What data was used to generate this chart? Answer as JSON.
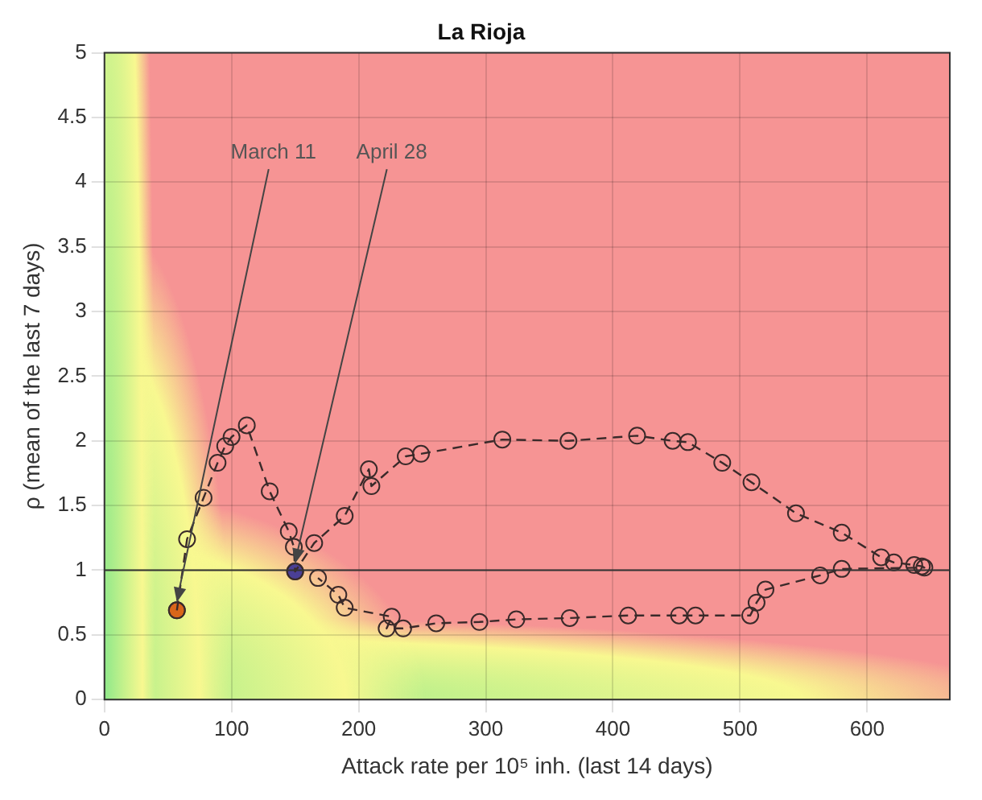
{
  "chart_data": {
    "type": "line",
    "title": "La Rioja",
    "xlabel": "Attack rate per 10⁵ inh. (last 14 days)",
    "ylabel": "ρ (mean of the last 7 days)",
    "xlim": [
      0,
      665
    ],
    "xticks": [
      0,
      100,
      200,
      300,
      400,
      500,
      600
    ],
    "ylim": [
      0,
      5
    ],
    "yticks": [
      0,
      0.5,
      1,
      1.5,
      2,
      2.5,
      3,
      3.5,
      4,
      4.5,
      5
    ],
    "grid": true,
    "marker": "circle",
    "line_style": "dashed",
    "series": [
      {
        "type": "line",
        "color": "#3a2a2a",
        "x": [
          57,
          65,
          78,
          89,
          95,
          100,
          112,
          130,
          145,
          149,
          150,
          165,
          189,
          208,
          210,
          237,
          249,
          313,
          365,
          419,
          447,
          459,
          486,
          509,
          544,
          580,
          611,
          621,
          637,
          643,
          645,
          580,
          563,
          520,
          513,
          508,
          465,
          452,
          412,
          366,
          324,
          295,
          261,
          235,
          222,
          226,
          189,
          184,
          168
        ],
        "values": [
          0.69,
          1.24,
          1.56,
          1.83,
          1.96,
          2.03,
          2.12,
          1.61,
          1.3,
          1.18,
          0.99,
          1.21,
          1.42,
          1.78,
          1.65,
          1.88,
          1.9,
          2.01,
          2.0,
          2.04,
          2.0,
          1.99,
          1.83,
          1.68,
          1.44,
          1.29,
          1.1,
          1.06,
          1.04,
          1.03,
          1.02,
          1.01,
          0.96,
          0.85,
          0.75,
          0.65,
          0.65,
          0.65,
          0.65,
          0.63,
          0.62,
          0.6,
          0.59,
          0.55,
          0.55,
          0.64,
          0.71,
          0.81,
          0.94
        ]
      },
      {
        "type": "scatter",
        "color": "#d9661a",
        "x": [
          57
        ],
        "values": [
          0.69
        ]
      },
      {
        "type": "scatter",
        "color": "#4a3f96",
        "x": [
          150
        ],
        "values": [
          0.99
        ]
      }
    ],
    "ref_lines": [
      {
        "axis": "y",
        "value": 1,
        "color": "#333333"
      }
    ],
    "annotations": [
      {
        "text": "March 11",
        "x": 57,
        "y": 0.69
      },
      {
        "text": "April 28",
        "x": 150,
        "y": 0.99
      }
    ]
  }
}
